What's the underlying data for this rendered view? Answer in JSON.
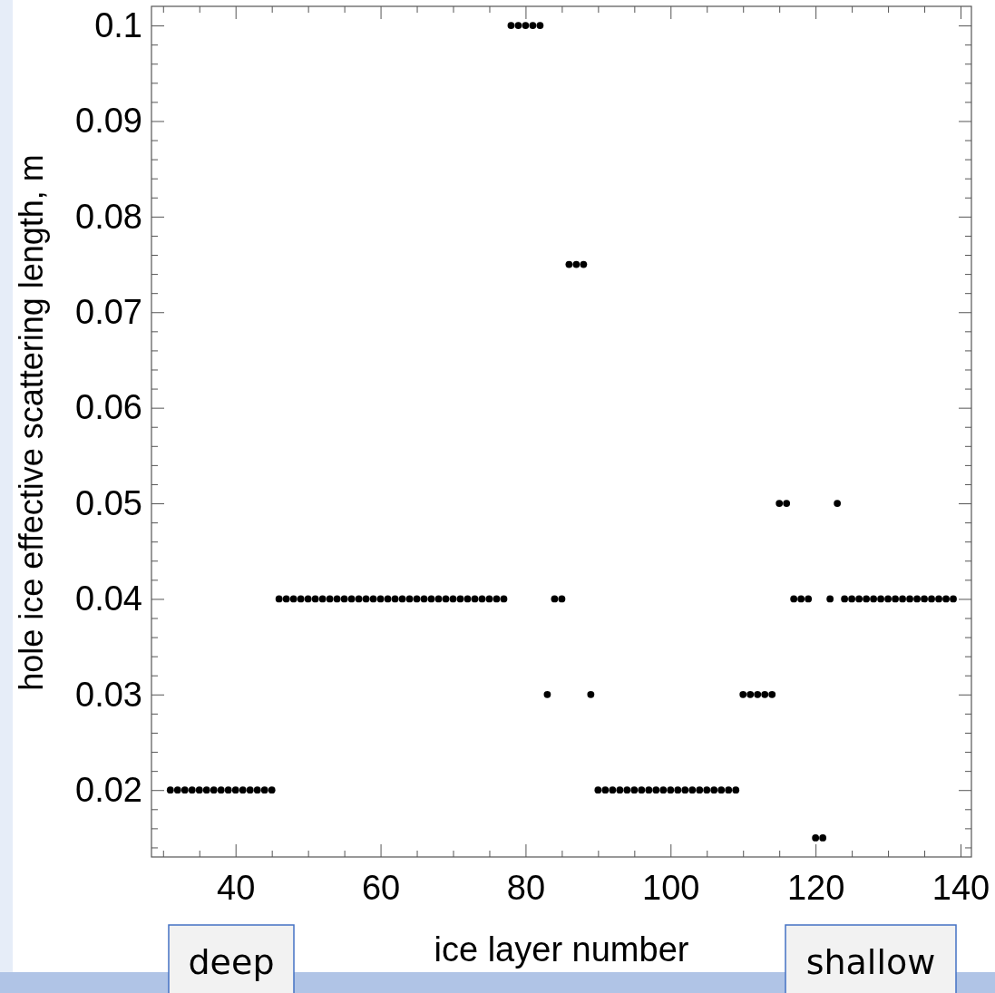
{
  "chart_data": {
    "type": "scatter",
    "xlabel": "ice layer number",
    "ylabel": "hole ice effective scattering length, m",
    "x": [
      31,
      32,
      33,
      34,
      35,
      36,
      37,
      38,
      39,
      40,
      41,
      42,
      43,
      44,
      45,
      46,
      47,
      48,
      49,
      50,
      51,
      52,
      53,
      54,
      55,
      56,
      57,
      58,
      59,
      60,
      61,
      62,
      63,
      64,
      65,
      66,
      67,
      68,
      69,
      70,
      71,
      72,
      73,
      74,
      75,
      76,
      77,
      78,
      79,
      80,
      81,
      82,
      83,
      84,
      85,
      86,
      87,
      88,
      89,
      90,
      91,
      92,
      93,
      94,
      95,
      96,
      97,
      98,
      99,
      100,
      101,
      102,
      103,
      104,
      105,
      106,
      107,
      108,
      109,
      110,
      111,
      112,
      113,
      114,
      115,
      116,
      117,
      118,
      119,
      120,
      121,
      122,
      123,
      124,
      125,
      126,
      127,
      128,
      129,
      130,
      131,
      132,
      133,
      134,
      135,
      136,
      137,
      138,
      139
    ],
    "series": [
      {
        "color": "#000000",
        "values": [
          0.02,
          0.02,
          0.02,
          0.02,
          0.02,
          0.02,
          0.02,
          0.02,
          0.02,
          0.02,
          0.02,
          0.02,
          0.02,
          0.02,
          0.02,
          0.04,
          0.04,
          0.04,
          0.04,
          0.04,
          0.04,
          0.04,
          0.04,
          0.04,
          0.04,
          0.04,
          0.04,
          0.04,
          0.04,
          0.04,
          0.04,
          0.04,
          0.04,
          0.04,
          0.04,
          0.04,
          0.04,
          0.04,
          0.04,
          0.04,
          0.04,
          0.04,
          0.04,
          0.04,
          0.04,
          0.04,
          0.04,
          0.1,
          0.1,
          0.1,
          0.1,
          0.1,
          0.03,
          0.04,
          0.04,
          0.075,
          0.075,
          0.075,
          0.03,
          0.02,
          0.02,
          0.02,
          0.02,
          0.02,
          0.02,
          0.02,
          0.02,
          0.02,
          0.02,
          0.02,
          0.02,
          0.02,
          0.02,
          0.02,
          0.02,
          0.02,
          0.02,
          0.02,
          0.02,
          0.03,
          0.03,
          0.03,
          0.03,
          0.03,
          0.05,
          0.05,
          0.04,
          0.04,
          0.04,
          0.015,
          0.015,
          0.04,
          0.05,
          0.04,
          0.04,
          0.04,
          0.04,
          0.04,
          0.04,
          0.04,
          0.04,
          0.04,
          0.04,
          0.04,
          0.04,
          0.04,
          0.04,
          0.04,
          0.04
        ]
      }
    ],
    "xlim": [
      28.4,
      141.5
    ],
    "xticks": [
      {
        "value": 30,
        "label": null
      },
      {
        "value": 35,
        "label": null
      },
      40,
      {
        "value": 45,
        "label": null
      },
      {
        "value": 50,
        "label": null
      },
      {
        "value": 55,
        "label": null
      },
      60,
      {
        "value": 65,
        "label": null
      },
      {
        "value": 70,
        "label": null
      },
      {
        "value": 75,
        "label": null
      },
      80,
      {
        "value": 85,
        "label": null
      },
      {
        "value": 90,
        "label": null
      },
      {
        "value": 95,
        "label": null
      },
      100,
      {
        "value": 105,
        "label": null
      },
      {
        "value": 110,
        "label": null
      },
      {
        "value": 115,
        "label": null
      },
      120,
      {
        "value": 125,
        "label": null
      },
      {
        "value": 130,
        "label": null
      },
      {
        "value": 135,
        "label": null
      },
      140
    ],
    "ylim": [
      0.013,
      0.102
    ],
    "yticks": [
      {
        "value": 0.014,
        "label": null
      },
      {
        "value": 0.016,
        "label": null
      },
      {
        "value": 0.018,
        "label": null
      },
      0.02,
      {
        "value": 0.022,
        "label": null
      },
      {
        "value": 0.024,
        "label": null
      },
      {
        "value": 0.026,
        "label": null
      },
      {
        "value": 0.028,
        "label": null
      },
      0.03,
      {
        "value": 0.032,
        "label": null
      },
      {
        "value": 0.034,
        "label": null
      },
      {
        "value": 0.036,
        "label": null
      },
      {
        "value": 0.038,
        "label": null
      },
      0.04,
      {
        "value": 0.042,
        "label": null
      },
      {
        "value": 0.044,
        "label": null
      },
      {
        "value": 0.046,
        "label": null
      },
      {
        "value": 0.048,
        "label": null
      },
      0.05,
      {
        "value": 0.052,
        "label": null
      },
      {
        "value": 0.054,
        "label": null
      },
      {
        "value": 0.056,
        "label": null
      },
      {
        "value": 0.058,
        "label": null
      },
      0.06,
      {
        "value": 0.062,
        "label": null
      },
      {
        "value": 0.064,
        "label": null
      },
      {
        "value": 0.066,
        "label": null
      },
      {
        "value": 0.068,
        "label": null
      },
      0.07,
      {
        "value": 0.072,
        "label": null
      },
      {
        "value": 0.074,
        "label": null
      },
      {
        "value": 0.076,
        "label": null
      },
      {
        "value": 0.078,
        "label": null
      },
      0.08,
      {
        "value": 0.082,
        "label": null
      },
      {
        "value": 0.084,
        "label": null
      },
      {
        "value": 0.086,
        "label": null
      },
      {
        "value": 0.088,
        "label": null
      },
      0.09,
      {
        "value": 0.092,
        "label": null
      },
      {
        "value": 0.094,
        "label": null
      },
      {
        "value": 0.096,
        "label": null
      },
      {
        "value": 0.098,
        "label": null
      },
      0.1
    ],
    "annotations": [
      "deep",
      "shallow"
    ],
    "marker": "circle",
    "grid": false
  }
}
